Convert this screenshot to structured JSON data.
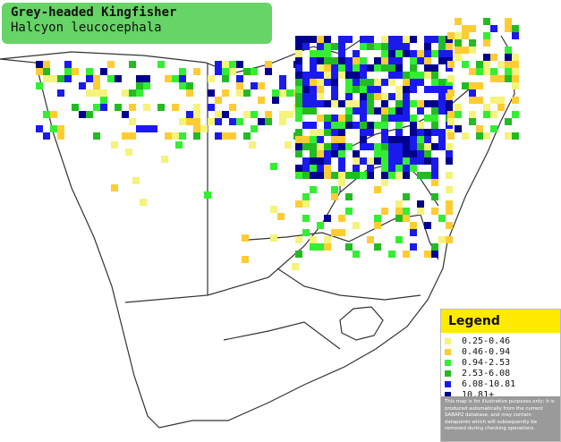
{
  "header": {
    "title": "Grey-headed Kingfisher",
    "subtitle": "Halcyon leucocephala"
  },
  "legend": {
    "title": "Legend",
    "items": [
      {
        "label": "0.25-0.46",
        "color": "#f4f47a"
      },
      {
        "label": "0.46-0.94",
        "color": "#ffcc33"
      },
      {
        "label": "0.94-2.53",
        "color": "#33ee33"
      },
      {
        "label": "2.53-6.08",
        "color": "#22bb22"
      },
      {
        "label": "6.08-10.81",
        "color": "#1a1aee"
      },
      {
        "label": "10.81+",
        "color": "#00008f"
      }
    ],
    "disclaimer": "This map is for illustrative purposes only; it is produced automatically from the current SABAP2 database, and may contain datapoints which will subsequently be removed during checking operations."
  }
}
